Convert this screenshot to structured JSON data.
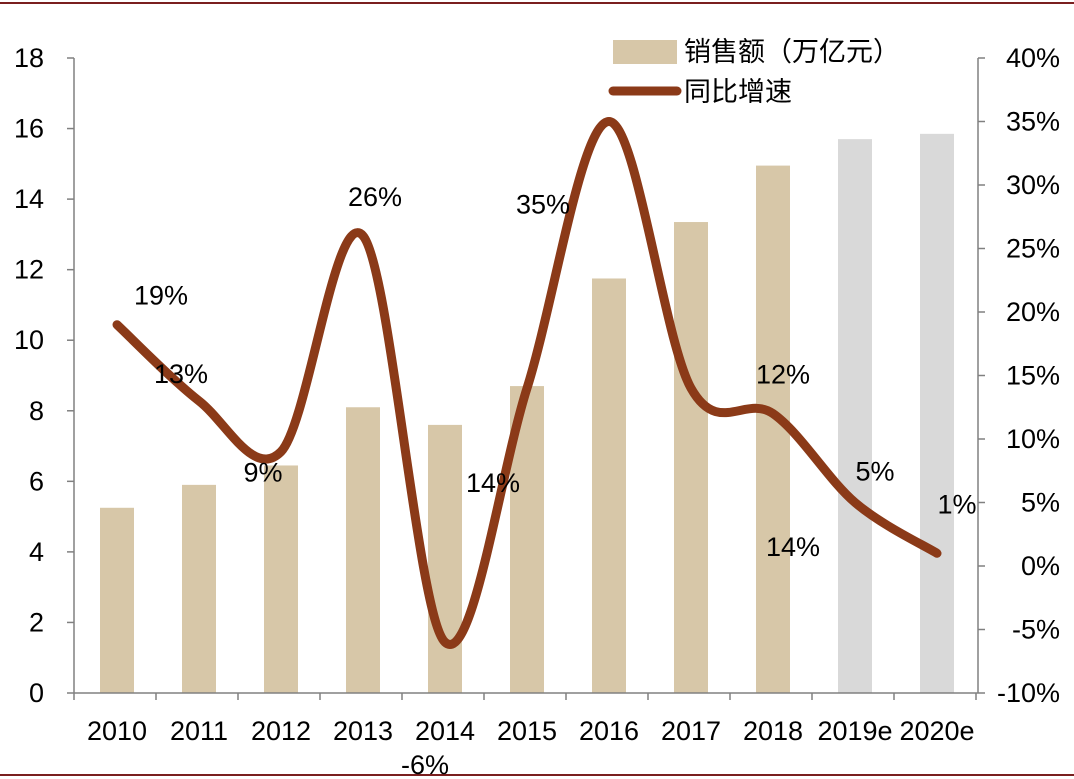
{
  "chart_data": {
    "type": "bar+line",
    "categories": [
      "2010",
      "2011",
      "2012",
      "2013",
      "2014",
      "2015",
      "2016",
      "2017",
      "2018",
      "2019e",
      "2020e"
    ],
    "series": [
      {
        "name": "销售额（万亿元）",
        "kind": "bar",
        "axis": "left",
        "values": [
          5.25,
          5.9,
          6.45,
          8.1,
          7.6,
          8.7,
          11.75,
          13.35,
          14.95,
          15.7,
          15.85
        ],
        "color": "#d7c7a8",
        "forecast_color": "#d9d9d9",
        "forecast_categories": [
          "2019e",
          "2020e"
        ]
      },
      {
        "name": "同比增速",
        "kind": "line",
        "axis": "right",
        "smooth": true,
        "values": [
          19,
          13,
          9,
          26,
          -6,
          14,
          35,
          14,
          12,
          5,
          1
        ],
        "labels": [
          "19%",
          "13%",
          "9%",
          "26%",
          "-6%",
          "14%",
          "35%",
          "14%",
          "12%",
          "5%",
          "1%"
        ],
        "color": "#8b3a18"
      }
    ],
    "y_left": {
      "lim": [
        0,
        18
      ],
      "ticks": [
        "0",
        "2",
        "4",
        "6",
        "8",
        "10",
        "12",
        "14",
        "16",
        "18"
      ]
    },
    "y_right": {
      "lim": [
        -10,
        40
      ],
      "ticks": [
        "-10%",
        "-5%",
        "0%",
        "5%",
        "10%",
        "15%",
        "20%",
        "25%",
        "30%",
        "35%",
        "40%"
      ]
    },
    "legend_position": "top-center",
    "grid": false,
    "frame_color": "#7a1f1f"
  }
}
